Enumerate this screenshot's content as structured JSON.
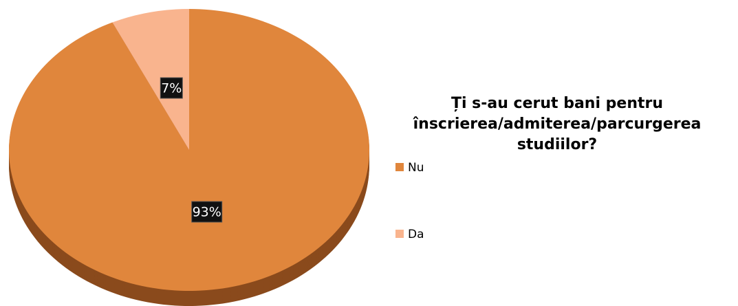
{
  "chart_data": {
    "type": "pie",
    "title": "Ți s-au cerut bani pentru înscrierea/admiterea/parcurgerea studiilor?",
    "categories": [
      "Nu",
      "Da"
    ],
    "values": [
      93,
      7
    ],
    "value_labels": [
      "93%",
      "7%"
    ],
    "colors": [
      "#e0863c",
      "#f9b48e"
    ],
    "side_colors": [
      "#8a4a1c",
      "#b07050"
    ],
    "legend": "right"
  }
}
